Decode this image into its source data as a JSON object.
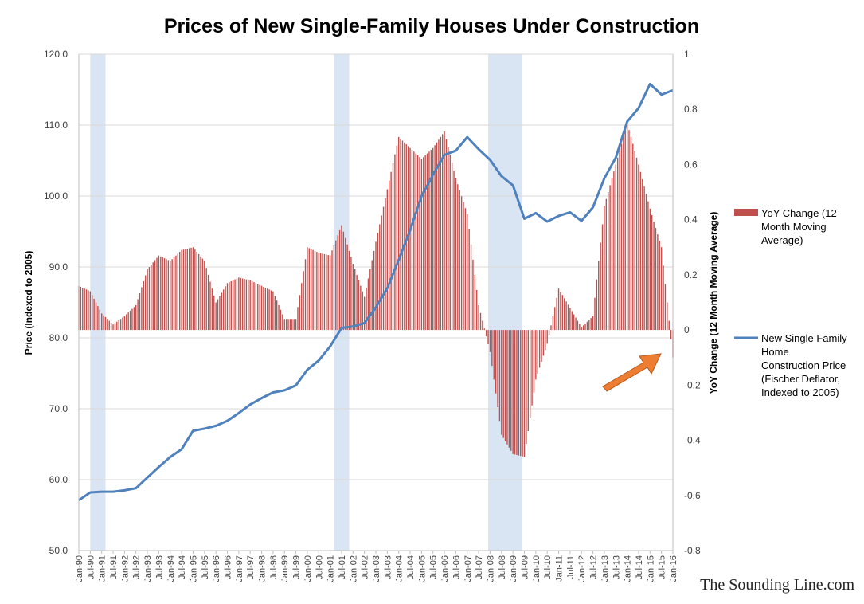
{
  "chart_data": {
    "type": "line",
    "title": "Prices of New Single-Family Houses Under Construction",
    "ylabel_left": "Price (Indexed to 2005)",
    "ylabel_right": "YoY Change (12 Month Moving Average)",
    "ylim_left": [
      50,
      120
    ],
    "ylim_right": [
      -0.8,
      1
    ],
    "yticks_left": [
      "50.0",
      "60.0",
      "70.0",
      "80.0",
      "90.0",
      "100.0",
      "110.0",
      "120.0"
    ],
    "yticks_right": [
      "-0.8",
      "-0.6",
      "-0.4",
      "-0.2",
      "0",
      "0.2",
      "0.4",
      "0.6",
      "0.8",
      "1"
    ],
    "x_ticks": [
      "Jan-90",
      "Jul-90",
      "Jan-91",
      "Jul-91",
      "Jan-92",
      "Jul-92",
      "Jan-93",
      "Jul-93",
      "Jan-94",
      "Jul-94",
      "Jan-95",
      "Jul-95",
      "Jan-96",
      "Jul-96",
      "Jan-97",
      "Jul-97",
      "Jan-98",
      "Jul-98",
      "Jan-99",
      "Jul-99",
      "Jan-00",
      "Jul-00",
      "Jan-01",
      "Jul-01",
      "Jan-02",
      "Jul-02",
      "Jan-03",
      "Jul-03",
      "Jan-04",
      "Jul-04",
      "Jan-05",
      "Jul-05",
      "Jan-06",
      "Jul-06",
      "Jan-07",
      "Jul-07",
      "Jan-08",
      "Jul-08",
      "Jan-09",
      "Jul-09",
      "Jan-10",
      "Jul-10",
      "Jan-11",
      "Jul-11",
      "Jan-12",
      "Jul-12",
      "Jan-13",
      "Jul-13",
      "Jan-14",
      "Jul-14",
      "Jan-15",
      "Jul-15",
      "Jan-16"
    ],
    "grid": "horizontal",
    "legend_position": "right",
    "recessions": [
      {
        "start": "Jul-90",
        "end": "Mar-91"
      },
      {
        "start": "Mar-01",
        "end": "Nov-01"
      },
      {
        "start": "Dec-07",
        "end": "Jun-09"
      }
    ],
    "colors": {
      "price_line": "#4f81bd",
      "bars": "#c0504d",
      "recession": "#dae5f4",
      "arrow": "#ed7d31",
      "grid": "#d9d9d9"
    },
    "series": [
      {
        "name": "New Single Family Home Construction Price (Fischer Deflator, Indexed to 2005)",
        "axis": "left",
        "style": "line",
        "x": [
          "Jan-90",
          "Jul-90",
          "Jan-91",
          "Jul-91",
          "Jan-92",
          "Jul-92",
          "Jan-93",
          "Jul-93",
          "Jan-94",
          "Jul-94",
          "Jan-95",
          "Jul-95",
          "Jan-96",
          "Jul-96",
          "Jan-97",
          "Jul-97",
          "Jan-98",
          "Jul-98",
          "Jan-99",
          "Jul-99",
          "Jan-00",
          "Jul-00",
          "Jan-01",
          "Jul-01",
          "Jan-02",
          "Jul-02",
          "Jan-03",
          "Jul-03",
          "Jan-04",
          "Jul-04",
          "Jan-05",
          "Jul-05",
          "Jan-06",
          "Jul-06",
          "Jan-07",
          "Jul-07",
          "Jan-08",
          "Jul-08",
          "Jan-09",
          "Jul-09",
          "Jan-10",
          "Jul-10",
          "Jan-11",
          "Jul-11",
          "Jan-12",
          "Jul-12",
          "Jan-13",
          "Jul-13",
          "Jan-14",
          "Jul-14",
          "Jan-15",
          "Jul-15",
          "Jan-16"
        ],
        "values": [
          57.1,
          58.2,
          58.3,
          58.3,
          58.5,
          58.8,
          60.3,
          61.8,
          63.2,
          64.3,
          66.9,
          67.2,
          67.6,
          68.3,
          69.4,
          70.6,
          71.5,
          72.3,
          72.6,
          73.3,
          75.5,
          76.8,
          78.8,
          81.4,
          81.6,
          82.1,
          84.3,
          87.0,
          91.0,
          95.2,
          100.0,
          103.0,
          105.8,
          106.4,
          108.3,
          106.6,
          105.1,
          102.8,
          101.5,
          96.8,
          97.6,
          96.4,
          97.2,
          97.7,
          96.5,
          98.4,
          102.5,
          105.4,
          110.5,
          112.4,
          115.8,
          114.3,
          114.9
        ]
      },
      {
        "name": "YoY Change (12 Month Moving Average)",
        "axis": "right",
        "style": "bar",
        "x": [
          "Jan-90",
          "Jul-90",
          "Jan-91",
          "Jul-91",
          "Jan-92",
          "Jul-92",
          "Jan-93",
          "Jul-93",
          "Jan-94",
          "Jul-94",
          "Jan-95",
          "Jul-95",
          "Jan-96",
          "Jul-96",
          "Jan-97",
          "Jul-97",
          "Jan-98",
          "Jul-98",
          "Jan-99",
          "Jul-99",
          "Jan-00",
          "Jul-00",
          "Jan-01",
          "Jul-01",
          "Jan-02",
          "Jul-02",
          "Jan-03",
          "Jul-03",
          "Jan-04",
          "Jul-04",
          "Jan-05",
          "Jul-05",
          "Jan-06",
          "Jul-06",
          "Jan-07",
          "Jul-07",
          "Jan-08",
          "Jul-08",
          "Jan-09",
          "Jul-09",
          "Jan-10",
          "Jul-10",
          "Jan-11",
          "Jul-11",
          "Jan-12",
          "Jul-12",
          "Jan-13",
          "Jul-13",
          "Jan-14",
          "Jul-14",
          "Jan-15",
          "Jul-15",
          "Jan-16"
        ],
        "values": [
          0.16,
          0.14,
          0.06,
          0.02,
          0.05,
          0.09,
          0.22,
          0.27,
          0.25,
          0.29,
          0.3,
          0.25,
          0.1,
          0.17,
          0.19,
          0.18,
          0.16,
          0.14,
          0.04,
          0.04,
          0.3,
          0.28,
          0.27,
          0.38,
          0.24,
          0.12,
          0.32,
          0.51,
          0.7,
          0.66,
          0.62,
          0.66,
          0.72,
          0.55,
          0.42,
          0.09,
          -0.08,
          -0.38,
          -0.45,
          -0.46,
          -0.18,
          -0.05,
          0.15,
          0.08,
          0.01,
          0.05,
          0.45,
          0.6,
          0.75,
          0.6,
          0.44,
          0.3,
          -0.1
        ]
      }
    ]
  },
  "legend": {
    "bars_label_lines": [
      "YoY Change (12",
      "Month Moving",
      "Average)"
    ],
    "line_label_lines": [
      "New Single Family",
      "Home",
      "Construction Price",
      "(Fischer Deflator,",
      "Indexed to 2005)"
    ]
  },
  "watermark": "The Sounding Line.com"
}
